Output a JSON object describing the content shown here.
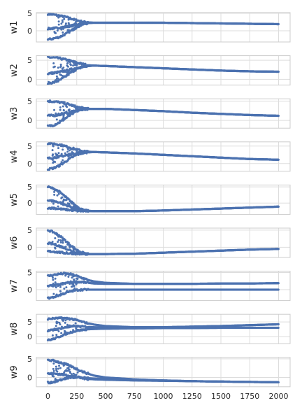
{
  "chart_data": {
    "type": "scatter",
    "title": "",
    "xlabel": "",
    "xlim": [
      -100,
      2100
    ],
    "x_ticks": [
      0,
      250,
      500,
      750,
      1000,
      1250,
      1500,
      1750,
      2000
    ],
    "x_tick_labels": [
      "0",
      "250",
      "500",
      "750",
      "1000",
      "1250",
      "1500",
      "1750",
      "2000"
    ],
    "grid": true,
    "color": "#4c72b0",
    "series": [
      {
        "ylabel": "w1",
        "ylim": [
          -3.2,
          5.2
        ],
        "y_ticks": [
          0,
          5
        ],
        "y_tick_labels": [
          "0",
          "5"
        ],
        "x": [
          0,
          50,
          100,
          150,
          200,
          250,
          300,
          350,
          400,
          500,
          750,
          1000,
          1250,
          1500,
          1750,
          2000
        ],
        "lines": [
          [
            4.8,
            4.6,
            4.3,
            4.0,
            3.5,
            3.0,
            2.6,
            2.4,
            2.3,
            2.3,
            2.3,
            2.3,
            2.2,
            2.1,
            2.0,
            1.9
          ],
          [
            0.6,
            0.7,
            0.9,
            1.1,
            1.4,
            1.8,
            2.1,
            2.3,
            2.3,
            2.3,
            2.3,
            2.3,
            2.2,
            2.1,
            2.0,
            1.9
          ],
          [
            -2.5,
            -2.2,
            -1.8,
            -1.0,
            0.0,
            1.0,
            1.8,
            2.2,
            2.3,
            2.3,
            2.3,
            2.3,
            2.2,
            2.1,
            2.0,
            1.9
          ]
        ]
      },
      {
        "ylabel": "w2",
        "ylim": [
          -1.5,
          6.2
        ],
        "y_ticks": [
          0,
          5
        ],
        "y_tick_labels": [
          "0",
          "5"
        ],
        "x": [
          0,
          50,
          100,
          150,
          200,
          250,
          300,
          350,
          400,
          500,
          750,
          1000,
          1250,
          1500,
          1750,
          2000
        ],
        "lines": [
          [
            5.8,
            5.7,
            5.5,
            5.2,
            4.8,
            4.4,
            4.0,
            3.7,
            3.6,
            3.5,
            3.2,
            2.9,
            2.6,
            2.3,
            2.1,
            2.0
          ],
          [
            1.5,
            1.7,
            1.9,
            2.2,
            2.6,
            3.0,
            3.3,
            3.5,
            3.6,
            3.5,
            3.2,
            2.9,
            2.6,
            2.3,
            2.1,
            2.0
          ],
          [
            -1.0,
            -0.8,
            -0.3,
            0.7,
            1.8,
            2.7,
            3.2,
            3.5,
            3.6,
            3.5,
            3.2,
            2.9,
            2.6,
            2.3,
            2.1,
            2.0
          ]
        ]
      },
      {
        "ylabel": "w3",
        "ylim": [
          -2.0,
          5.6
        ],
        "y_ticks": [
          0,
          5
        ],
        "y_tick_labels": [
          "0",
          "5"
        ],
        "x": [
          0,
          50,
          100,
          150,
          200,
          250,
          300,
          350,
          400,
          500,
          750,
          1000,
          1250,
          1500,
          1750,
          2000
        ],
        "lines": [
          [
            5.0,
            4.9,
            4.7,
            4.4,
            4.0,
            3.5,
            3.2,
            3.0,
            3.0,
            3.0,
            2.7,
            2.4,
            2.0,
            1.7,
            1.4,
            1.2
          ],
          [
            1.2,
            1.3,
            1.5,
            1.8,
            2.2,
            2.6,
            2.9,
            3.0,
            3.0,
            3.0,
            2.7,
            2.4,
            2.0,
            1.7,
            1.4,
            1.2
          ],
          [
            -1.5,
            -1.2,
            -0.5,
            0.5,
            1.5,
            2.4,
            2.9,
            3.0,
            3.0,
            3.0,
            2.7,
            2.4,
            2.0,
            1.7,
            1.4,
            1.2
          ]
        ]
      },
      {
        "ylabel": "w4",
        "ylim": [
          -2.2,
          6.2
        ],
        "y_ticks": [
          0,
          5
        ],
        "y_tick_labels": [
          "0",
          "5"
        ],
        "x": [
          0,
          50,
          100,
          150,
          200,
          250,
          300,
          350,
          400,
          500,
          750,
          1000,
          1250,
          1500,
          1750,
          2000
        ],
        "lines": [
          [
            5.8,
            5.7,
            5.4,
            5.0,
            4.5,
            4.0,
            3.6,
            3.4,
            3.3,
            3.2,
            2.9,
            2.5,
            2.1,
            1.7,
            1.3,
            1.1
          ],
          [
            1.5,
            1.7,
            2.0,
            2.3,
            2.7,
            3.0,
            3.2,
            3.3,
            3.3,
            3.2,
            2.9,
            2.5,
            2.1,
            1.7,
            1.3,
            1.1
          ],
          [
            -1.6,
            -1.3,
            -0.6,
            0.5,
            1.6,
            2.5,
            3.0,
            3.2,
            3.3,
            3.2,
            2.9,
            2.5,
            2.1,
            1.7,
            1.3,
            1.1
          ]
        ]
      },
      {
        "ylabel": "w5",
        "ylim": [
          -3.5,
          5.6
        ],
        "y_ticks": [
          0,
          5
        ],
        "y_tick_labels": [
          "0",
          "5"
        ],
        "x": [
          0,
          50,
          100,
          150,
          200,
          250,
          300,
          350,
          400,
          500,
          750,
          1000,
          1250,
          1500,
          1750,
          2000
        ],
        "lines": [
          [
            5.0,
            4.5,
            3.5,
            2.0,
            0.5,
            -1.0,
            -2.0,
            -2.4,
            -2.5,
            -2.5,
            -2.5,
            -2.3,
            -2.0,
            -1.7,
            -1.4,
            -1.1
          ],
          [
            0.8,
            0.6,
            0.2,
            -0.5,
            -1.2,
            -1.8,
            -2.2,
            -2.4,
            -2.5,
            -2.5,
            -2.5,
            -2.3,
            -2.0,
            -1.7,
            -1.4,
            -1.1
          ],
          [
            -1.5,
            -1.6,
            -1.8,
            -2.0,
            -2.2,
            -2.4,
            -2.5,
            -2.5,
            -2.5,
            -2.5,
            -2.5,
            -2.3,
            -2.0,
            -1.7,
            -1.4,
            -1.1
          ]
        ]
      },
      {
        "ylabel": "w6",
        "ylim": [
          -3.0,
          5.6
        ],
        "y_ticks": [
          0,
          5
        ],
        "y_tick_labels": [
          "0",
          "5"
        ],
        "x": [
          0,
          50,
          100,
          150,
          200,
          250,
          300,
          350,
          400,
          500,
          750,
          1000,
          1250,
          1500,
          1750,
          2000
        ],
        "lines": [
          [
            5.0,
            4.4,
            3.4,
            2.0,
            0.5,
            -0.8,
            -1.6,
            -2.0,
            -2.0,
            -2.0,
            -1.9,
            -1.6,
            -1.3,
            -1.0,
            -0.7,
            -0.5
          ],
          [
            1.2,
            0.9,
            0.4,
            -0.3,
            -1.0,
            -1.6,
            -1.9,
            -2.0,
            -2.0,
            -2.0,
            -1.9,
            -1.6,
            -1.3,
            -1.0,
            -0.7,
            -0.5
          ],
          [
            -1.2,
            -1.3,
            -1.5,
            -1.7,
            -1.8,
            -1.9,
            -2.0,
            -2.0,
            -2.0,
            -2.0,
            -1.9,
            -1.6,
            -1.3,
            -1.0,
            -0.7,
            -0.5
          ]
        ]
      },
      {
        "ylabel": "w7",
        "ylim": [
          -3.2,
          5.4
        ],
        "y_ticks": [
          0,
          5
        ],
        "y_tick_labels": [
          "0",
          "5"
        ],
        "x": [
          0,
          50,
          100,
          150,
          200,
          250,
          300,
          350,
          400,
          500,
          750,
          1000,
          1250,
          1500,
          1750,
          2000
        ],
        "lines": [
          [
            4.0,
            4.3,
            4.6,
            4.7,
            4.5,
            4.0,
            3.4,
            2.8,
            2.4,
            2.0,
            1.7,
            1.7,
            1.7,
            1.8,
            1.8,
            1.9
          ],
          [
            1.0,
            1.2,
            1.5,
            1.9,
            2.2,
            2.3,
            2.2,
            2.0,
            1.8,
            1.7,
            1.7,
            1.7,
            1.7,
            1.8,
            1.8,
            1.9
          ],
          [
            -2.5,
            -2.2,
            -1.6,
            -1.0,
            -0.5,
            -0.1,
            0.0,
            0.0,
            0.0,
            0.0,
            0.0,
            0.0,
            0.0,
            0.0,
            0.0,
            0.0
          ]
        ]
      },
      {
        "ylabel": "w8",
        "ylim": [
          -2.4,
          7.6
        ],
        "y_ticks": [
          0,
          5
        ],
        "y_tick_labels": [
          "0",
          "5"
        ],
        "x": [
          0,
          50,
          100,
          150,
          200,
          250,
          300,
          350,
          400,
          500,
          750,
          1000,
          1250,
          1500,
          1750,
          2000
        ],
        "lines": [
          [
            6.0,
            6.2,
            6.3,
            6.3,
            6.1,
            5.6,
            5.0,
            4.5,
            4.1,
            3.6,
            3.2,
            3.2,
            3.4,
            3.6,
            3.9,
            4.2
          ],
          [
            2.0,
            2.3,
            2.7,
            3.1,
            3.4,
            3.5,
            3.4,
            3.3,
            3.2,
            3.2,
            3.2,
            3.2,
            3.4,
            3.6,
            3.9,
            4.2
          ],
          [
            -1.2,
            -0.8,
            0.0,
            0.8,
            1.5,
            2.0,
            2.3,
            2.5,
            2.6,
            2.7,
            2.8,
            2.9,
            2.9,
            3.0,
            3.0,
            3.0
          ]
        ]
      },
      {
        "ylabel": "w9",
        "ylim": [
          -2.5,
          5.4
        ],
        "y_ticks": [
          0,
          5
        ],
        "y_tick_labels": [
          "0",
          "5"
        ],
        "x": [
          0,
          50,
          100,
          150,
          200,
          250,
          300,
          350,
          400,
          500,
          750,
          1000,
          1250,
          1500,
          1750,
          2000
        ],
        "lines": [
          [
            4.7,
            4.5,
            4.1,
            3.6,
            3.0,
            2.3,
            1.6,
            1.0,
            0.5,
            0.0,
            -0.5,
            -0.8,
            -1.0,
            -1.1,
            -1.2,
            -1.3
          ],
          [
            1.0,
            1.0,
            0.9,
            0.7,
            0.4,
            0.1,
            -0.2,
            -0.4,
            -0.5,
            -0.6,
            -0.8,
            -0.9,
            -1.0,
            -1.1,
            -1.2,
            -1.3
          ],
          [
            -1.4,
            -1.2,
            -0.8,
            -0.3,
            0.0,
            0.0,
            -0.1,
            -0.2,
            -0.3,
            -0.4,
            -0.6,
            -0.8,
            -1.0,
            -1.1,
            -1.2,
            -1.3
          ]
        ]
      }
    ]
  }
}
